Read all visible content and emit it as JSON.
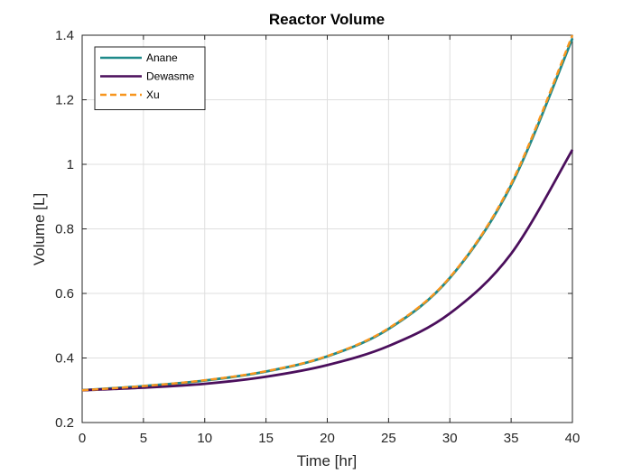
{
  "chart_data": {
    "type": "line",
    "title": "Reactor Volume",
    "xlabel": "Time [hr]",
    "ylabel": "Volume [L]",
    "xlim": [
      0,
      40
    ],
    "ylim": [
      0.2,
      1.4
    ],
    "x_ticks": [
      0,
      5,
      10,
      15,
      20,
      25,
      30,
      35,
      40
    ],
    "y_ticks": [
      0.2,
      0.4,
      0.6,
      0.8,
      1,
      1.2,
      1.4
    ],
    "x_tick_labels": [
      "0",
      "5",
      "10",
      "15",
      "20",
      "25",
      "30",
      "35",
      "40"
    ],
    "y_tick_labels": [
      "0.2",
      "0.4",
      "0.6",
      "0.8",
      "1",
      "1.2",
      "1.4"
    ],
    "grid": true,
    "legend_position": "top-left",
    "x": [
      0,
      5,
      10,
      15,
      20,
      25,
      30,
      35,
      40
    ],
    "series": [
      {
        "name": "Anane",
        "color": "#1f8a8a",
        "style": "solid",
        "values": [
          0.3,
          0.313,
          0.33,
          0.358,
          0.405,
          0.49,
          0.648,
          0.935,
          1.39
        ]
      },
      {
        "name": "Dewasme",
        "color": "#4b0f5c",
        "style": "solid",
        "values": [
          0.3,
          0.308,
          0.32,
          0.342,
          0.378,
          0.437,
          0.538,
          0.723,
          1.045
        ]
      },
      {
        "name": "Xu",
        "color": "#f7961e",
        "style": "dashed",
        "values": [
          0.3,
          0.313,
          0.331,
          0.359,
          0.406,
          0.492,
          0.65,
          0.94,
          1.4
        ]
      }
    ]
  }
}
